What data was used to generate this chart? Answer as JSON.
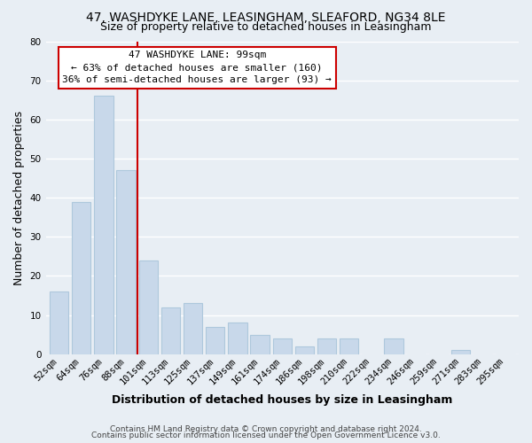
{
  "title": "47, WASHDYKE LANE, LEASINGHAM, SLEAFORD, NG34 8LE",
  "subtitle": "Size of property relative to detached houses in Leasingham",
  "xlabel": "Distribution of detached houses by size in Leasingham",
  "ylabel": "Number of detached properties",
  "bar_color": "#c8d8ea",
  "bar_edge_color": "#aec8dc",
  "categories": [
    "52sqm",
    "64sqm",
    "76sqm",
    "88sqm",
    "101sqm",
    "113sqm",
    "125sqm",
    "137sqm",
    "149sqm",
    "161sqm",
    "174sqm",
    "186sqm",
    "198sqm",
    "210sqm",
    "222sqm",
    "234sqm",
    "246sqm",
    "259sqm",
    "271sqm",
    "283sqm",
    "295sqm"
  ],
  "values": [
    16,
    39,
    66,
    47,
    24,
    12,
    13,
    7,
    8,
    5,
    4,
    2,
    4,
    4,
    0,
    4,
    0,
    0,
    1,
    0,
    0
  ],
  "ylim": [
    0,
    80
  ],
  "yticks": [
    0,
    10,
    20,
    30,
    40,
    50,
    60,
    70,
    80
  ],
  "vline_color": "#cc0000",
  "annotation_title": "47 WASHDYKE LANE: 99sqm",
  "annotation_line1": "← 63% of detached houses are smaller (160)",
  "annotation_line2": "36% of semi-detached houses are larger (93) →",
  "annotation_box_color": "#ffffff",
  "annotation_box_edge_color": "#cc0000",
  "footer1": "Contains HM Land Registry data © Crown copyright and database right 2024.",
  "footer2": "Contains public sector information licensed under the Open Government Licence v3.0.",
  "background_color": "#e8eef4",
  "grid_color": "#ffffff",
  "title_fontsize": 10,
  "subtitle_fontsize": 9,
  "axis_label_fontsize": 9,
  "tick_fontsize": 7.5,
  "annotation_fontsize": 8,
  "footer_fontsize": 6.5
}
